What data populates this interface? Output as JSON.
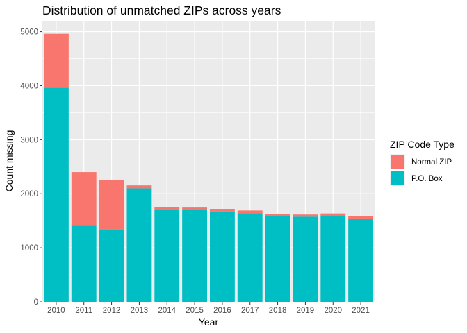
{
  "chart_data": {
    "type": "bar",
    "stacked": true,
    "title": "Distribution of unmatched ZIPs across years",
    "xlabel": "Year",
    "ylabel": "Count missing",
    "categories": [
      "2010",
      "2011",
      "2012",
      "2013",
      "2014",
      "2015",
      "2016",
      "2017",
      "2018",
      "2019",
      "2020",
      "2021"
    ],
    "ylim": [
      0,
      5200
    ],
    "yticks": [
      0,
      1000,
      2000,
      3000,
      4000,
      5000
    ],
    "ytick_labels": [
      "0",
      "1000",
      "2000",
      "3000",
      "4000",
      "5000"
    ],
    "grid": true,
    "legend": {
      "title": "ZIP Code Type",
      "position": "right"
    },
    "series": [
      {
        "name": "P.O. Box",
        "color": "#00BFC4",
        "values": [
          3960,
          1410,
          1340,
          2100,
          1700,
          1695,
          1670,
          1640,
          1580,
          1575,
          1590,
          1540
        ]
      },
      {
        "name": "Normal ZIP",
        "color": "#F8766D",
        "values": [
          1000,
          990,
          920,
          55,
          55,
          50,
          50,
          50,
          50,
          40,
          45,
          45
        ]
      }
    ]
  }
}
